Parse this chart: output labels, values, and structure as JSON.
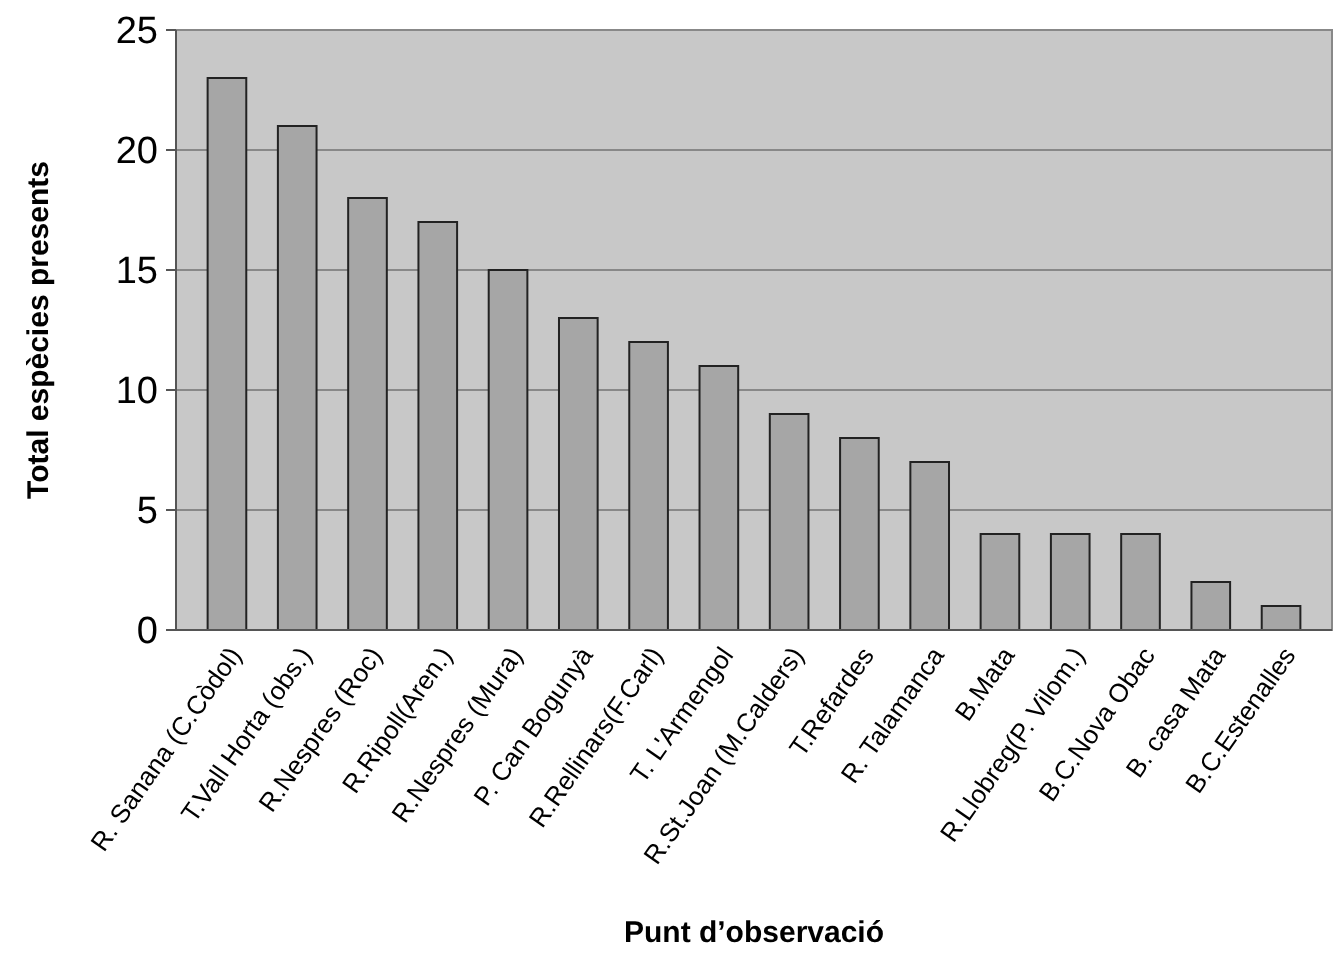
{
  "chart_data": {
    "type": "bar",
    "xlabel": "Punt d’observació",
    "ylabel": "Total espècies presents",
    "categories": [
      "R. Sanana (C.Còdol)",
      "T.Vall Horta (obs.)",
      "R.Nespres (Roc)",
      "R.Ripoll(Aren.)",
      "R.Nespres (Mura)",
      "P. Can Bogunyà",
      "R.Rellinars(F.Carl)",
      "T. L'Armengol",
      "R.St.Joan (M.Calders)",
      "T.Refardes",
      "R. Talamanca",
      "B.Mata",
      "R.Llobreg(P. Vilom.)",
      "B.C.Nova Obac",
      "B. casa Mata",
      "B.C.Estenalles"
    ],
    "values": [
      23,
      21,
      18,
      17,
      15,
      13,
      12,
      11,
      9,
      8,
      7,
      4,
      4,
      4,
      2,
      1
    ],
    "color": "#a6a6a6",
    "ylim": [
      0,
      25
    ],
    "yticks": [
      0,
      5,
      10,
      15,
      20,
      25
    ],
    "grid": "y"
  }
}
